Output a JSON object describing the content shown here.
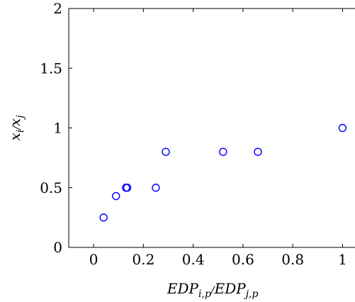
{
  "chart_data": {
    "type": "scatter",
    "title": "",
    "xlabel": "EDP_{i,p}/EDP_{j,p}",
    "ylabel": "x_i/x_j",
    "xlim": [
      -0.1,
      1.05
    ],
    "ylim": [
      0,
      2
    ],
    "xticks": [
      0,
      0.2,
      0.4,
      0.6,
      0.8,
      1
    ],
    "xtick_labels": [
      "0",
      "0.2",
      "0.4",
      "0.6",
      "0.8",
      "1"
    ],
    "yticks": [
      0,
      0.5,
      1,
      1.5,
      2
    ],
    "ytick_labels": [
      "0",
      "0.5",
      "1",
      "1.5",
      "2"
    ],
    "grid": false,
    "marker": "open-circle",
    "color": "#0000ff",
    "series": [
      {
        "x": [
          0.04,
          0.09,
          0.13,
          0.135,
          0.25,
          0.29,
          0.52,
          0.66,
          1.0
        ],
        "y": [
          0.25,
          0.43,
          0.5,
          0.5,
          0.5,
          0.8,
          0.8,
          0.8,
          1.0
        ]
      }
    ]
  }
}
